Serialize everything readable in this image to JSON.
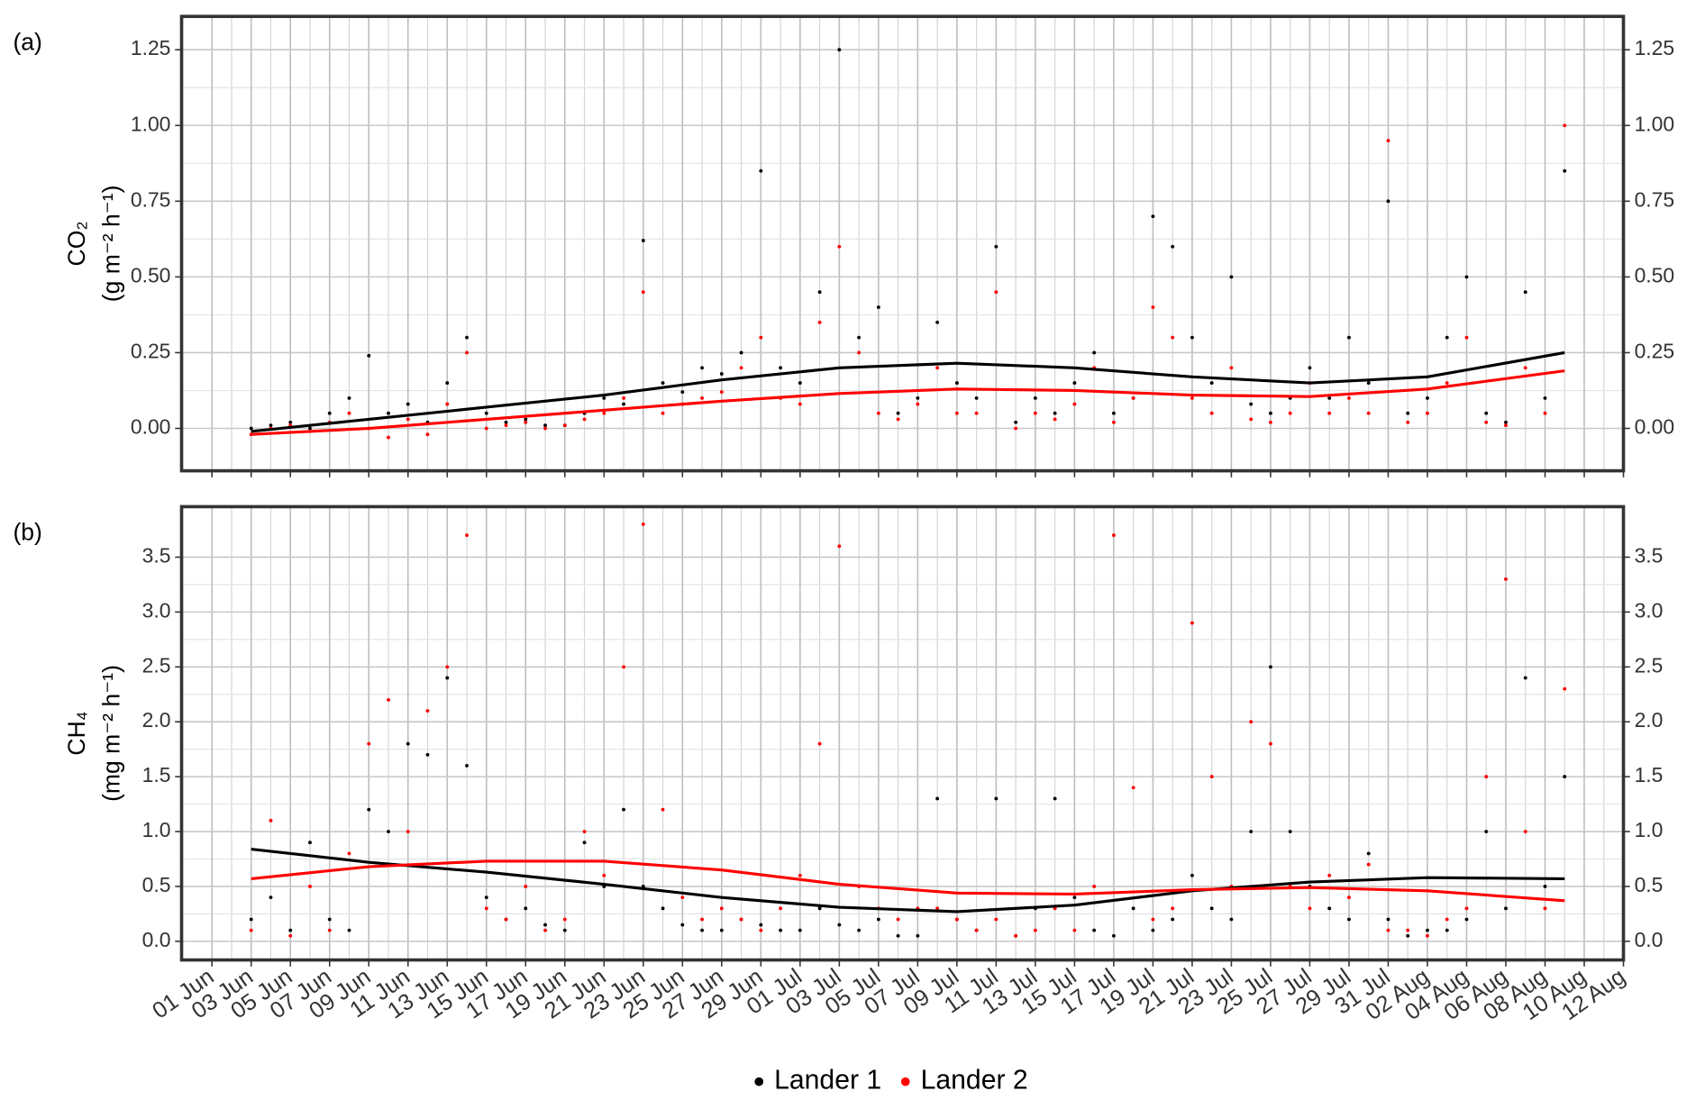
{
  "chart_data": [
    {
      "type": "scatter",
      "panel_label": "(a)",
      "ylabel": [
        "CO₂",
        "(g m⁻² h⁻¹)"
      ],
      "xlim": [
        -1.55,
        72
      ],
      "ylim": [
        -0.14,
        1.36
      ],
      "yticks": [
        {
          "value": 0,
          "label": "0.00"
        },
        0.25,
        {
          "value": 0.5,
          "label": "0.50"
        },
        0.75,
        {
          "value": 1,
          "label": "1.00"
        },
        1.25
      ],
      "grid": true,
      "x": [
        2,
        3,
        4,
        5,
        6,
        7,
        8,
        9,
        10,
        11,
        12,
        13,
        14,
        15,
        16,
        17,
        18,
        19,
        20,
        21,
        22,
        23,
        24,
        25,
        26,
        27,
        28,
        29,
        30,
        31,
        32,
        33,
        34,
        35,
        36,
        37,
        38,
        39,
        40,
        41,
        42,
        43,
        44,
        45,
        46,
        47,
        48,
        49,
        50,
        51,
        52,
        53,
        54,
        55,
        56,
        57,
        58,
        59,
        60,
        61,
        62,
        63,
        64,
        65,
        66,
        67,
        68,
        69
      ],
      "trend_x": [
        2,
        8,
        14,
        20,
        26,
        32,
        38,
        44,
        50,
        56,
        62,
        69
      ],
      "series": [
        {
          "color": "#000000",
          "values": [
            0.0,
            0.01,
            0.02,
            0.0,
            0.05,
            0.1,
            0.24,
            0.05,
            0.08,
            0.02,
            0.15,
            0.3,
            0.05,
            0.02,
            0.03,
            0.01,
            0.01,
            0.05,
            0.1,
            0.08,
            0.62,
            0.15,
            0.12,
            0.2,
            0.18,
            0.25,
            0.85,
            0.2,
            0.15,
            0.45,
            1.25,
            0.3,
            0.4,
            0.05,
            0.1,
            0.35,
            0.15,
            0.1,
            0.6,
            0.02,
            0.1,
            0.05,
            0.15,
            0.25,
            0.05,
            0.1,
            0.7,
            0.6,
            0.3,
            0.15,
            0.5,
            0.08,
            0.05,
            0.1,
            0.2,
            0.1,
            0.3,
            0.15,
            0.75,
            0.05,
            0.1,
            0.3,
            0.5,
            0.05,
            0.02,
            0.45,
            0.1,
            0.85
          ],
          "trend_values": [
            -0.01,
            0.03,
            0.07,
            0.11,
            0.16,
            0.2,
            0.215,
            0.2,
            0.17,
            0.15,
            0.17,
            0.25
          ]
        },
        {
          "color": "#ff0000",
          "values": [
            -0.02,
            0.0,
            0.01,
            -0.01,
            0.02,
            0.05,
            0.0,
            -0.03,
            0.03,
            -0.02,
            0.08,
            0.25,
            0.0,
            0.01,
            0.02,
            0.0,
            0.01,
            0.03,
            0.05,
            0.1,
            0.45,
            0.05,
            0.08,
            0.1,
            0.12,
            0.2,
            0.3,
            0.1,
            0.08,
            0.35,
            0.6,
            0.25,
            0.05,
            0.03,
            0.08,
            0.2,
            0.05,
            0.05,
            0.45,
            0.0,
            0.05,
            0.03,
            0.08,
            0.2,
            0.02,
            0.1,
            0.4,
            0.3,
            0.1,
            0.05,
            0.2,
            0.03,
            0.02,
            0.05,
            0.15,
            0.05,
            0.1,
            0.05,
            0.95,
            0.02,
            0.05,
            0.15,
            0.3,
            0.02,
            0.01,
            0.2,
            0.05,
            1.0
          ],
          "trend_values": [
            -0.02,
            0.0,
            0.03,
            0.06,
            0.09,
            0.115,
            0.13,
            0.125,
            0.11,
            0.105,
            0.13,
            0.19
          ]
        }
      ]
    },
    {
      "type": "scatter",
      "panel_label": "(b)",
      "ylabel": [
        "CH₄",
        "(mg m⁻² h⁻¹)"
      ],
      "xlim": [
        -1.55,
        72
      ],
      "ylim": [
        -0.17,
        3.96
      ],
      "yticks": [
        {
          "value": 0,
          "label": "0.0"
        },
        0.5,
        {
          "value": 1,
          "label": "1.0"
        },
        1.5,
        {
          "value": 2,
          "label": "2.0"
        },
        2.5,
        {
          "value": 3,
          "label": "3.0"
        },
        3.5
      ],
      "xticks": [
        {
          "value": 0,
          "label": "01 Jun"
        },
        {
          "value": 2,
          "label": "03 Jun"
        },
        {
          "value": 4,
          "label": "05 Jun"
        },
        {
          "value": 6,
          "label": "07 Jun"
        },
        {
          "value": 8,
          "label": "09 Jun"
        },
        {
          "value": 10,
          "label": "11 Jun"
        },
        {
          "value": 12,
          "label": "13 Jun"
        },
        {
          "value": 14,
          "label": "15 Jun"
        },
        {
          "value": 16,
          "label": "17 Jun"
        },
        {
          "value": 18,
          "label": "19 Jun"
        },
        {
          "value": 20,
          "label": "21 Jun"
        },
        {
          "value": 22,
          "label": "23 Jun"
        },
        {
          "value": 24,
          "label": "25 Jun"
        },
        {
          "value": 26,
          "label": "27 Jun"
        },
        {
          "value": 28,
          "label": "29 Jun"
        },
        {
          "value": 30,
          "label": "01 Jul"
        },
        {
          "value": 32,
          "label": "03 Jul"
        },
        {
          "value": 34,
          "label": "05 Jul"
        },
        {
          "value": 36,
          "label": "07 Jul"
        },
        {
          "value": 38,
          "label": "09 Jul"
        },
        {
          "value": 40,
          "label": "11 Jul"
        },
        {
          "value": 42,
          "label": "13 Jul"
        },
        {
          "value": 44,
          "label": "15 Jul"
        },
        {
          "value": 46,
          "label": "17 Jul"
        },
        {
          "value": 48,
          "label": "19 Jul"
        },
        {
          "value": 50,
          "label": "21 Jul"
        },
        {
          "value": 52,
          "label": "23 Jul"
        },
        {
          "value": 54,
          "label": "25 Jul"
        },
        {
          "value": 56,
          "label": "27 Jul"
        },
        {
          "value": 58,
          "label": "29 Jul"
        },
        {
          "value": 60,
          "label": "31 Jul"
        },
        {
          "value": 62,
          "label": "02 Aug"
        },
        {
          "value": 64,
          "label": "04 Aug"
        },
        {
          "value": 66,
          "label": "06 Aug"
        },
        {
          "value": 68,
          "label": "08 Aug"
        },
        {
          "value": 70,
          "label": "10 Aug"
        },
        {
          "value": 72,
          "label": "12 Aug"
        }
      ],
      "grid": true,
      "x": [
        2,
        3,
        4,
        5,
        6,
        7,
        8,
        9,
        10,
        11,
        12,
        13,
        14,
        15,
        16,
        17,
        18,
        19,
        20,
        21,
        22,
        23,
        24,
        25,
        26,
        27,
        28,
        29,
        30,
        31,
        32,
        33,
        34,
        35,
        36,
        37,
        38,
        39,
        40,
        41,
        42,
        43,
        44,
        45,
        46,
        47,
        48,
        49,
        50,
        51,
        52,
        53,
        54,
        55,
        56,
        57,
        58,
        59,
        60,
        61,
        62,
        63,
        64,
        65,
        66,
        67,
        68,
        69
      ],
      "trend_x": [
        2,
        8,
        14,
        20,
        26,
        32,
        38,
        44,
        50,
        56,
        62,
        69
      ],
      "series": [
        {
          "name": "Lander 1",
          "color": "#000000",
          "values": [
            0.2,
            0.4,
            0.1,
            0.9,
            0.2,
            0.1,
            1.2,
            1.0,
            1.8,
            1.7,
            2.4,
            1.6,
            0.4,
            0.2,
            0.3,
            0.15,
            0.1,
            0.9,
            0.5,
            1.2,
            0.5,
            0.3,
            0.15,
            0.1,
            0.1,
            0.2,
            0.15,
            0.1,
            0.1,
            0.3,
            0.15,
            0.1,
            0.2,
            0.05,
            0.05,
            1.3,
            0.2,
            0.1,
            1.3,
            0.05,
            0.3,
            1.3,
            0.4,
            0.1,
            0.05,
            0.3,
            0.1,
            0.2,
            0.6,
            0.3,
            0.2,
            1.0,
            2.5,
            1.0,
            0.5,
            0.3,
            0.2,
            0.8,
            0.2,
            0.05,
            0.1,
            0.1,
            0.2,
            1.0,
            0.3,
            2.4,
            0.5,
            1.5
          ],
          "trend_values": [
            0.84,
            0.72,
            0.63,
            0.52,
            0.4,
            0.31,
            0.27,
            0.33,
            0.46,
            0.54,
            0.58,
            0.57
          ]
        },
        {
          "name": "Lander 2",
          "color": "#ff0000",
          "values": [
            0.1,
            1.1,
            0.05,
            0.5,
            0.1,
            0.8,
            1.8,
            2.2,
            1.0,
            2.1,
            2.5,
            3.7,
            0.3,
            0.2,
            0.5,
            0.1,
            0.2,
            1.0,
            0.6,
            2.5,
            3.8,
            1.2,
            0.4,
            0.2,
            0.3,
            0.2,
            0.1,
            0.3,
            0.6,
            1.8,
            3.6,
            0.5,
            0.3,
            0.2,
            0.3,
            0.3,
            0.2,
            0.1,
            0.2,
            0.05,
            0.1,
            0.3,
            0.1,
            0.5,
            3.7,
            1.4,
            0.2,
            0.3,
            2.9,
            1.5,
            0.5,
            2.0,
            1.8,
            0.5,
            0.3,
            0.6,
            0.4,
            0.7,
            0.1,
            0.1,
            0.05,
            0.2,
            0.3,
            1.5,
            3.3,
            1.0,
            0.3,
            2.3
          ],
          "trend_values": [
            0.57,
            0.68,
            0.73,
            0.73,
            0.65,
            0.52,
            0.44,
            0.43,
            0.47,
            0.49,
            0.46,
            0.37
          ]
        }
      ]
    }
  ]
}
